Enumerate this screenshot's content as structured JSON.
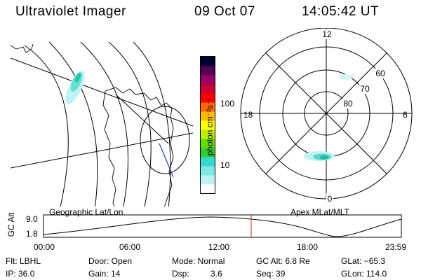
{
  "header": {
    "title": "Ultraviolet Imager",
    "date": "09 Oct 07",
    "time": "14:05:42 UT"
  },
  "colorbar": {
    "unit_label": "photon cm⁻²s⁻¹",
    "tick_100": "100",
    "tick_10": "10",
    "colors": [
      "#ffffff",
      "#bff2f2",
      "#7fe6e6",
      "#33d9cc",
      "#33cc33",
      "#66dd00",
      "#bbee00",
      "#ffff00",
      "#ffbb00",
      "#ff6600",
      "#ff0000",
      "#cc0033",
      "#990066",
      "#550055",
      "#000033"
    ]
  },
  "polar_plot": {
    "label_12": "12",
    "label_6": "6",
    "label_0": "0",
    "label_18": "18",
    "label_60": "60",
    "label_70": "70",
    "label_80": "80"
  },
  "timeline": {
    "y_axis_label": "GC Alt",
    "y_max": "9.0",
    "y_min": "1.8",
    "left_caption": "Geographic Lat/Lon",
    "right_caption": "Apex MLat/MLT",
    "x_ticks": [
      "00:00",
      "06:00",
      "12:00",
      "18:00",
      "23:59"
    ],
    "current_time_marker_color": "#dd2222"
  },
  "info": {
    "flt": "Flt: LBHL",
    "door": "Door: Open",
    "mode": "Mode: Normal",
    "gc_alt": "GC Alt: 6.8 Re",
    "glat": "GLat: −65.3",
    "ip": "IP: 36.0",
    "gain": "Gain: 14",
    "dsp_label": "Dsp:",
    "dsp_value": "3.6",
    "seq": "Seq: 39",
    "glon": "GLon: 114.0"
  }
}
